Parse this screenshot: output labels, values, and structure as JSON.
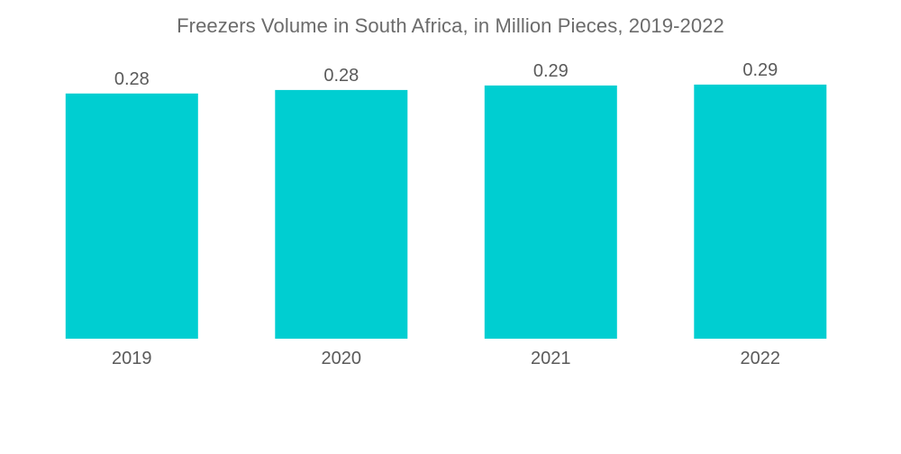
{
  "chart_data": {
    "type": "bar",
    "title": "Freezers Volume in South Africa, in Million Pieces, 2019-2022",
    "xlabel": "",
    "ylabel": "",
    "categories": [
      "2019",
      "2020",
      "2021",
      "2022"
    ],
    "values": [
      0.28,
      0.28,
      0.29,
      0.29
    ],
    "data_labels": [
      "0.28",
      "0.28",
      "0.29",
      "0.29"
    ],
    "bar_heights_relative": [
      0.276,
      0.28,
      0.285,
      0.286
    ],
    "ylim": [
      0,
      0.29
    ],
    "grid": false,
    "legend": "none",
    "bar_color": "#00ced1",
    "text_color": "#5a5a5a"
  }
}
